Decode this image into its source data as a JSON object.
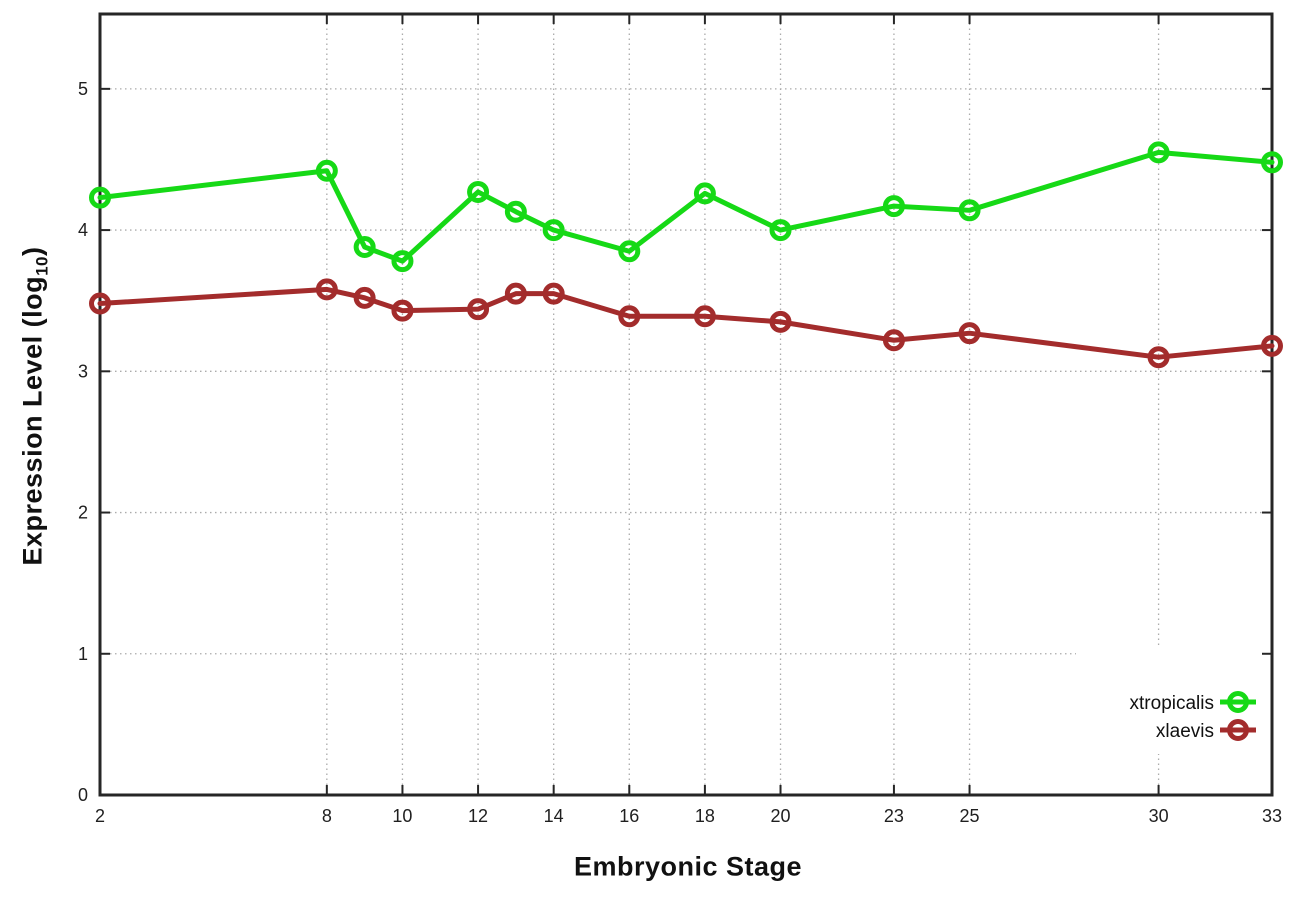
{
  "chart_data": {
    "type": "line",
    "title": "",
    "xlabel": "Embryonic Stage",
    "ylabel": "Expression Level (log10)",
    "ylabel_parts": {
      "text": "Expression Level (log",
      "sub": "10",
      "suffix": ")"
    },
    "x": [
      2,
      8,
      9,
      10,
      12,
      13,
      14,
      16,
      18,
      20,
      23,
      25,
      30,
      33
    ],
    "series": [
      {
        "name": "xtropicalis",
        "color": "#16d916",
        "marker": "open-circle",
        "values": [
          4.23,
          4.42,
          3.88,
          3.78,
          4.27,
          4.13,
          4.0,
          3.85,
          4.26,
          4.0,
          4.17,
          4.14,
          4.55,
          4.48
        ]
      },
      {
        "name": "xlaevis",
        "color": "#a32c2c",
        "marker": "open-circle",
        "values": [
          3.48,
          3.58,
          3.52,
          3.43,
          3.44,
          3.55,
          3.55,
          3.39,
          3.39,
          3.35,
          3.22,
          3.27,
          3.1,
          3.18
        ]
      }
    ],
    "xticks": [
      2,
      8,
      10,
      12,
      14,
      16,
      18,
      20,
      23,
      25,
      30,
      33
    ],
    "yticks": [
      0,
      1,
      2,
      3,
      4,
      5
    ],
    "xlim": [
      2,
      33
    ],
    "ylim": [
      0,
      5.53
    ],
    "grid": true,
    "legend_position": "inside-bottom-right",
    "colors": {
      "background": "#ffffff",
      "grid": "#ababab",
      "axis": "#262626",
      "tick_label": "#1f1f1f",
      "legend_text": "#111111"
    }
  }
}
